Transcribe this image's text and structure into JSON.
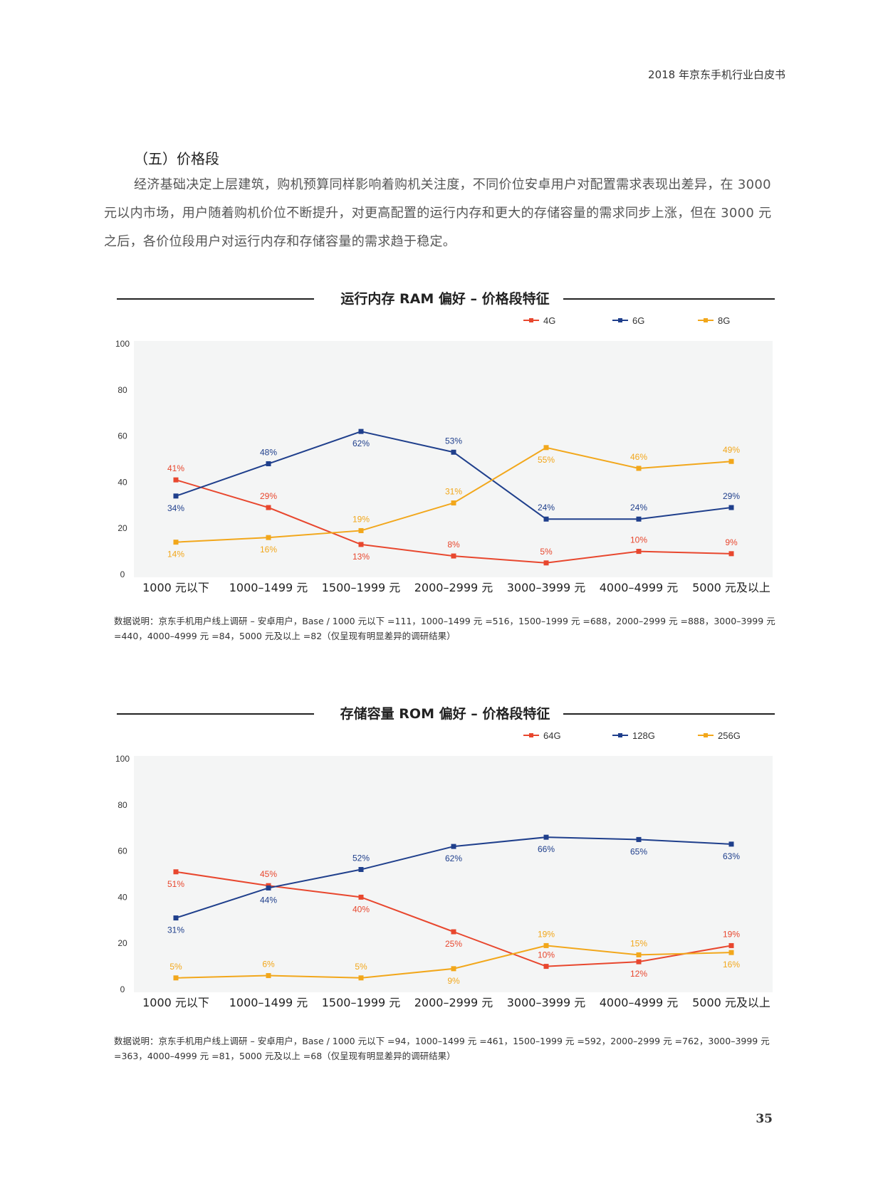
{
  "header": {
    "title": "2018 年京东手机行业白皮书"
  },
  "section": {
    "heading": "（五）价格段",
    "paragraph": "经济基础决定上层建筑，购机预算同样影响着购机关注度，不同价位安卓用户对配置需求表现出差异，在 3000 元以内市场，用户随着购机价位不断提升，对更高配置的运行内存和更大的存储容量的需求同步上涨，但在 3000 元之后，各价位段用户对运行内存和存储容量的需求趋于稳定。"
  },
  "chart_data": [
    {
      "type": "line",
      "title": "运行内存 RAM 偏好 – 价格段特征",
      "categories": [
        "1000 元以下",
        "1000–1499 元",
        "1500–1999 元",
        "2000–2999 元",
        "3000–3999 元",
        "4000–4999 元",
        "5000 元及以上"
      ],
      "y_ticks": [
        "100",
        "80",
        "60",
        "40",
        "20",
        "0"
      ],
      "ylim": [
        0,
        100
      ],
      "legend_position": "top-right",
      "series": [
        {
          "name": "4G",
          "color": "#e8472e",
          "values": [
            41,
            29,
            13,
            8,
            5,
            10,
            9
          ],
          "labels": [
            "41%",
            "29%",
            "13%",
            "8%",
            "5%",
            "10%",
            "9%"
          ],
          "label_pos": [
            "above",
            "above",
            "below",
            "above",
            "above",
            "above",
            "above"
          ]
        },
        {
          "name": "6G",
          "color": "#1f3f8c",
          "values": [
            34,
            48,
            62,
            53,
            24,
            24,
            29
          ],
          "labels": [
            "34%",
            "48%",
            "62%",
            "53%",
            "24%",
            "24%",
            "29%"
          ],
          "label_pos": [
            "below",
            "above",
            "below",
            "above",
            "above",
            "above",
            "above"
          ]
        },
        {
          "name": "8G",
          "color": "#f2a71b",
          "values": [
            14,
            16,
            19,
            31,
            55,
            46,
            49
          ],
          "labels": [
            "14%",
            "16%",
            "19%",
            "31%",
            "55%",
            "46%",
            "49%"
          ],
          "label_pos": [
            "below",
            "below",
            "above",
            "above",
            "below",
            "above",
            "above"
          ]
        }
      ]
    },
    {
      "type": "line",
      "title": "存储容量 ROM 偏好 – 价格段特征",
      "categories": [
        "1000 元以下",
        "1000–1499 元",
        "1500–1999 元",
        "2000–2999 元",
        "3000–3999 元",
        "4000–4999 元",
        "5000 元及以上"
      ],
      "y_ticks": [
        "100",
        "80",
        "60",
        "40",
        "20",
        "0"
      ],
      "ylim": [
        0,
        100
      ],
      "legend_position": "top-right",
      "series": [
        {
          "name": "64G",
          "color": "#e8472e",
          "values": [
            51,
            45,
            40,
            25,
            10,
            12,
            19
          ],
          "labels": [
            "51%",
            "45%",
            "40%",
            "25%",
            "10%",
            "12%",
            "19%"
          ],
          "label_pos": [
            "below",
            "above",
            "below",
            "below",
            "above",
            "below",
            "above"
          ]
        },
        {
          "name": "128G",
          "color": "#1f3f8c",
          "values": [
            31,
            44,
            52,
            62,
            66,
            65,
            63
          ],
          "labels": [
            "31%",
            "44%",
            "52%",
            "62%",
            "66%",
            "65%",
            "63%"
          ],
          "label_pos": [
            "below",
            "below",
            "above",
            "below",
            "below",
            "below",
            "below"
          ]
        },
        {
          "name": "256G",
          "color": "#f2a71b",
          "values": [
            5,
            6,
            5,
            9,
            19,
            15,
            16
          ],
          "labels": [
            "5%",
            "6%",
            "5%",
            "9%",
            "19%",
            "15%",
            "16%"
          ],
          "label_pos": [
            "above",
            "above",
            "above",
            "below",
            "above",
            "above",
            "below"
          ]
        }
      ]
    }
  ],
  "notes": [
    "数据说明：京东手机用户线上调研 – 安卓用户，Base / 1000 元以下 =111，1000–1499 元 =516，1500–1999 元 =688，2000–2999 元 =888，3000–3999 元 =440，4000–4999 元 =84，5000 元及以上 =82（仅呈现有明显差异的调研结果）",
    "数据说明：京东手机用户线上调研 – 安卓用户，Base / 1000 元以下 =94，1000–1499 元 =461，1500–1999 元 =592，2000–2999 元 =762，3000–3999 元 =363，4000–4999 元 =81，5000 元及以上 =68（仅呈现有明显差异的调研结果）"
  ],
  "page_number": "35"
}
